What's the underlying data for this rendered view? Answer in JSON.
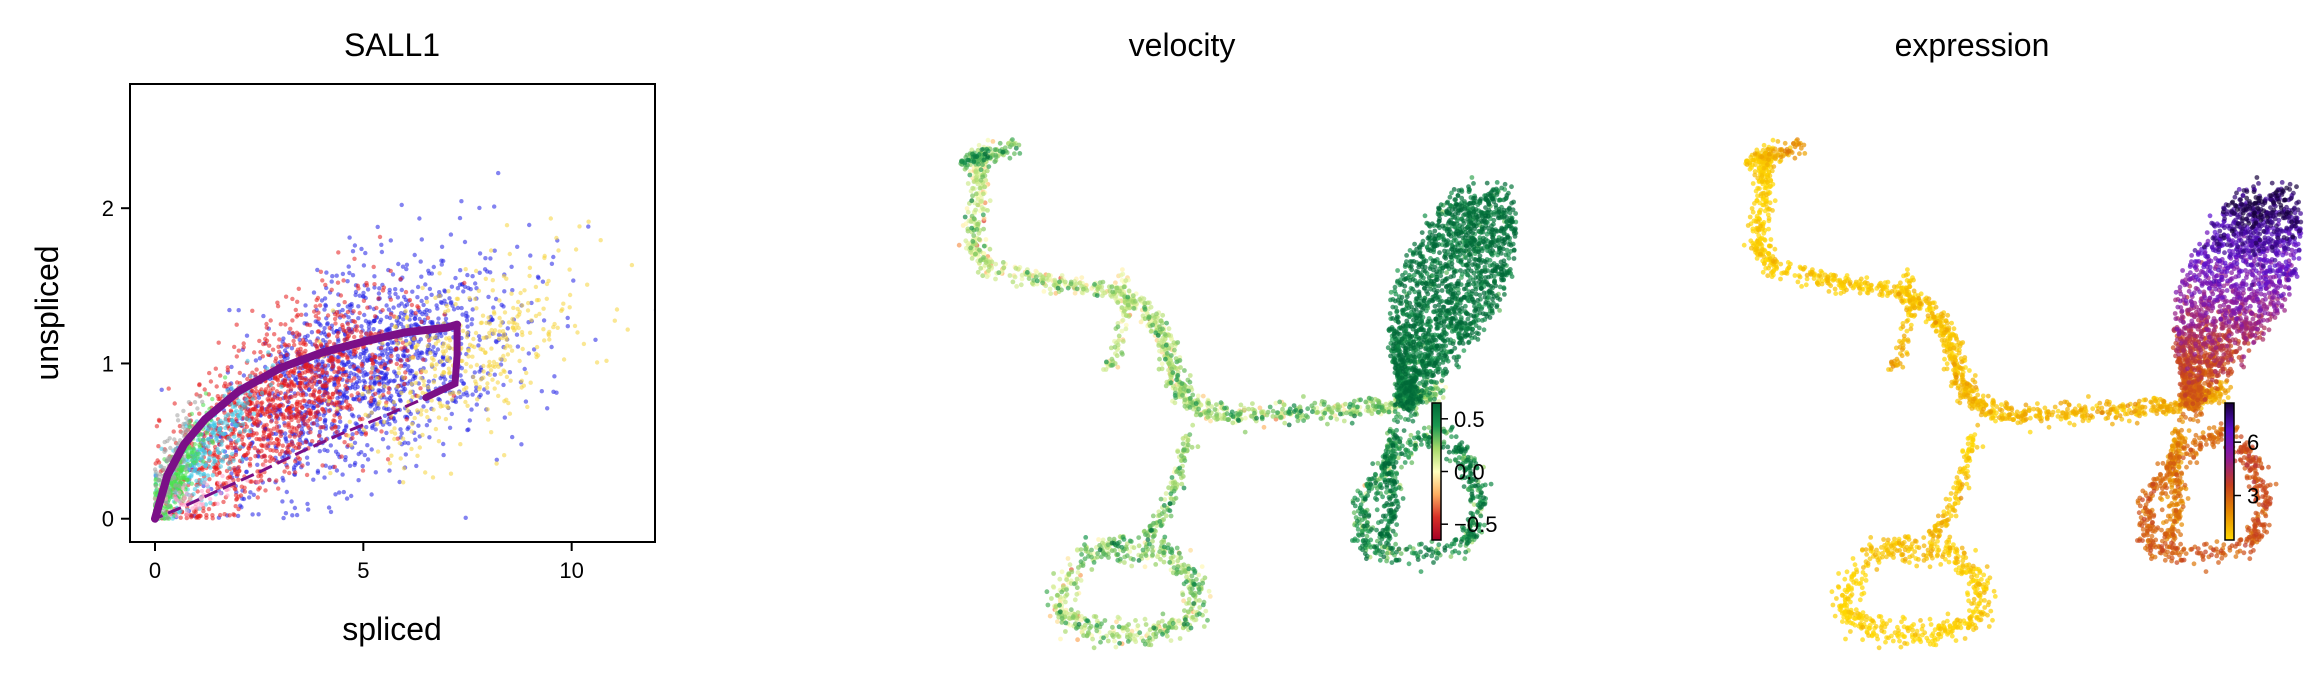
{
  "chart_data": [
    {
      "type": "scatter",
      "title": "SALL1",
      "xlabel": "spliced",
      "ylabel": "unspliced",
      "xlim": [
        -0.6,
        12.0
      ],
      "ylim": [
        -0.15,
        2.8
      ],
      "xticks": [
        0,
        5,
        10
      ],
      "yticks": [
        0,
        1,
        2
      ],
      "grid": false,
      "legend": "none",
      "point_colors": [
        "#1d1de6",
        "#e61919",
        "#f5d33a",
        "#3cc8e6",
        "#4be04b",
        "#a0a0a0",
        "#ff9fc8"
      ],
      "fit_curve_color": "#7b0f87",
      "fit_curve": {
        "up": [
          [
            0,
            0
          ],
          [
            0.3,
            0.28
          ],
          [
            0.7,
            0.48
          ],
          [
            1.2,
            0.64
          ],
          [
            2.0,
            0.82
          ],
          [
            3.0,
            0.97
          ],
          [
            4.0,
            1.07
          ],
          [
            5.0,
            1.14
          ],
          [
            6.0,
            1.2
          ],
          [
            7.0,
            1.23
          ],
          [
            7.25,
            1.25
          ]
        ],
        "down": [
          [
            7.25,
            1.25
          ],
          [
            7.25,
            1.05
          ],
          [
            7.2,
            0.87
          ],
          [
            6.5,
            0.78
          ],
          [
            5.5,
            0.66
          ],
          [
            4.5,
            0.55
          ],
          [
            3.5,
            0.43
          ],
          [
            2.5,
            0.3
          ],
          [
            1.5,
            0.18
          ],
          [
            0.7,
            0.08
          ],
          [
            0,
            0
          ]
        ]
      }
    },
    {
      "type": "scatter",
      "title": "velocity",
      "colorbar": {
        "ticks": [
          0.5,
          0.0,
          -0.5
        ],
        "tick_labels": [
          "0.5",
          "0.0",
          "−0.5"
        ],
        "range": [
          -0.65,
          0.65
        ],
        "colors": [
          "#a50026",
          "#d73027",
          "#fdae61",
          "#ffffbf",
          "#a6d96a",
          "#1a9850",
          "#006837"
        ]
      }
    },
    {
      "type": "scatter",
      "title": "expression",
      "colorbar": {
        "ticks": [
          6,
          3
        ],
        "tick_labels": [
          "6",
          "3"
        ],
        "range": [
          0.5,
          8.2
        ],
        "colors": [
          "#ffd700",
          "#e58a00",
          "#c6401e",
          "#8f1a96",
          "#5b0fd0",
          "#16003a"
        ]
      }
    }
  ]
}
